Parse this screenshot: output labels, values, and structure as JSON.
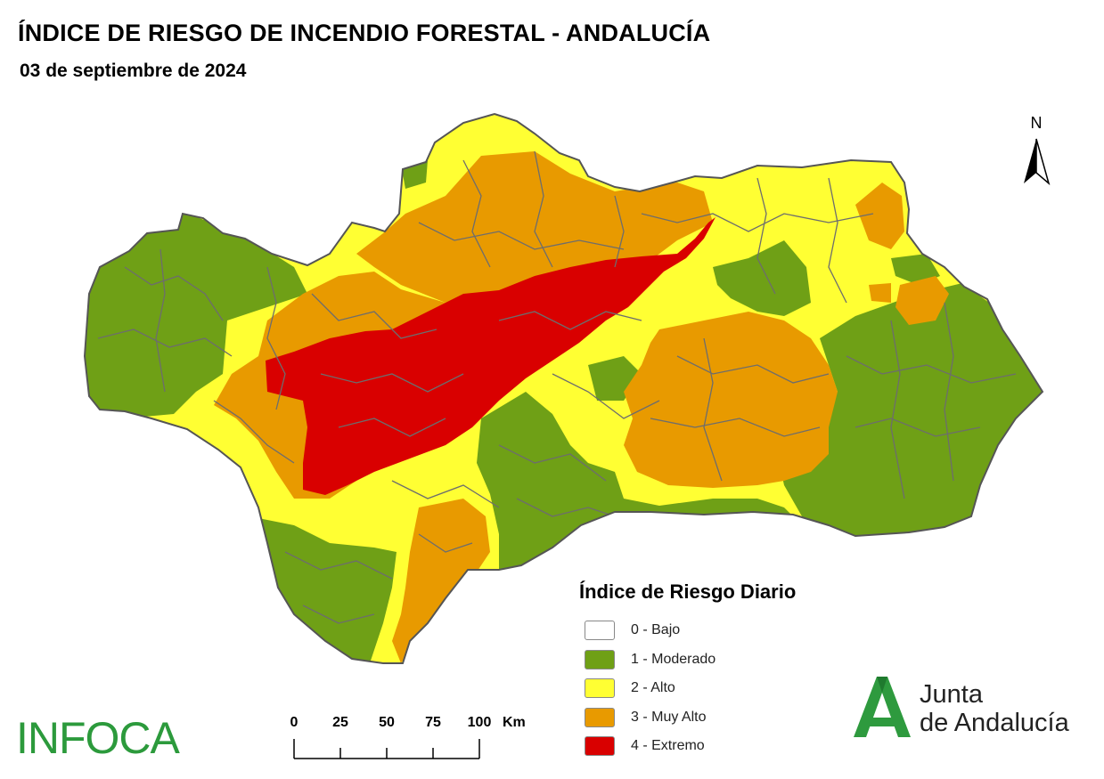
{
  "header": {
    "title": "ÍNDICE DE RIESGO DE INCENDIO FORESTAL - ANDALUCÍA",
    "date": "03 de septiembre de 2024"
  },
  "north_arrow": {
    "label": "N"
  },
  "legend": {
    "title": "Índice de Riesgo Diario",
    "items": [
      {
        "label": "0 - Bajo",
        "color": "#ffffff"
      },
      {
        "label": "1 - Moderado",
        "color": "#6fa016"
      },
      {
        "label": "2 - Alto",
        "color": "#ffff33"
      },
      {
        "label": "3 - Muy Alto",
        "color": "#e89a00"
      },
      {
        "label": "4 - Extremo",
        "color": "#d90000"
      }
    ]
  },
  "scale_bar": {
    "ticks": [
      "0",
      "25",
      "50",
      "75",
      "100"
    ],
    "unit": "Km"
  },
  "logos": {
    "infoca": "INFOCA",
    "junta_line1": "Junta",
    "junta_line2": "de Andalucía",
    "infoca_color": "#2c9a3c",
    "junta_color": "#2e9a3e"
  }
}
